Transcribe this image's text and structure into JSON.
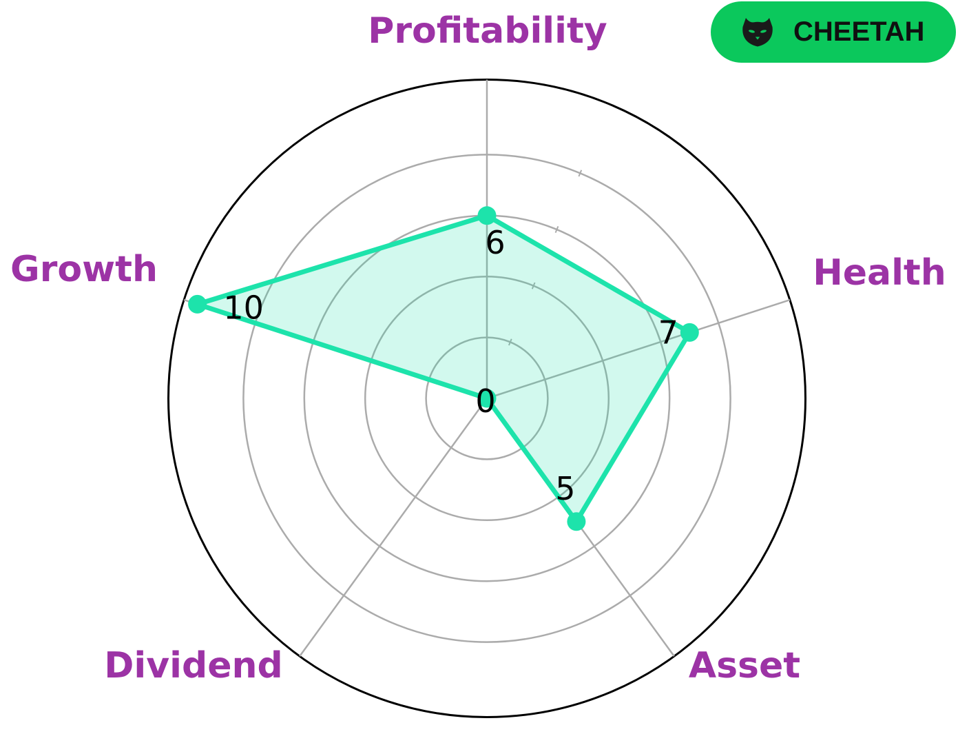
{
  "page": {
    "background_color": "#FFFFFF"
  },
  "badge": {
    "label": "CHEETAH",
    "icon": "cat-icon",
    "background_color": "#0BC85C",
    "text_color": "#101010",
    "icon_color": "#1A1A1A"
  },
  "chart_data": {
    "type": "radar",
    "title": "",
    "categories": [
      "Profitability",
      "Health",
      "Asset",
      "Dividend",
      "Growth"
    ],
    "series": [
      {
        "name": "CHEETAH",
        "values": [
          6,
          7,
          5,
          0,
          10
        ]
      }
    ],
    "value_labels": [
      "6",
      "7",
      "5",
      "0",
      "10"
    ],
    "rlim": [
      0,
      10.5
    ],
    "r_gridlines": [
      2,
      4,
      6,
      8
    ],
    "grid": true,
    "legend_position": "none",
    "axis_label_color": "#9C33A5",
    "line_color": "#1DE3AB",
    "fill_color": "rgba(29,227,171,0.2)",
    "marker_color": "#1DE3AB",
    "grid_color": "#ABABAB",
    "outer_ring_color": "#000000",
    "value_label_color": "#000000"
  }
}
